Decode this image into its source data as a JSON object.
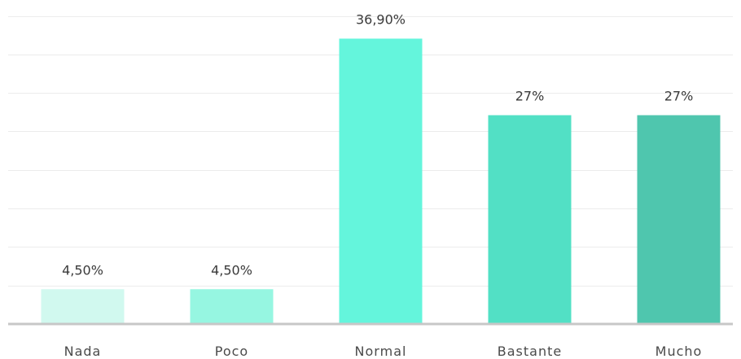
{
  "chart_data": {
    "type": "bar",
    "categories": [
      "Nada",
      "Poco",
      "Normal",
      "Bastante",
      "Mucho"
    ],
    "values": [
      4.5,
      4.5,
      36.9,
      27,
      27
    ],
    "data_labels": [
      "4,50%",
      "4,50%",
      "36,90%",
      "27%",
      "27%"
    ],
    "colors": [
      "#d1f9ef",
      "#96f6e1",
      "#64f5dc",
      "#52e0c5",
      "#4fc6ae"
    ],
    "ylim": [
      0,
      40
    ],
    "grid": true,
    "legend": "none"
  }
}
